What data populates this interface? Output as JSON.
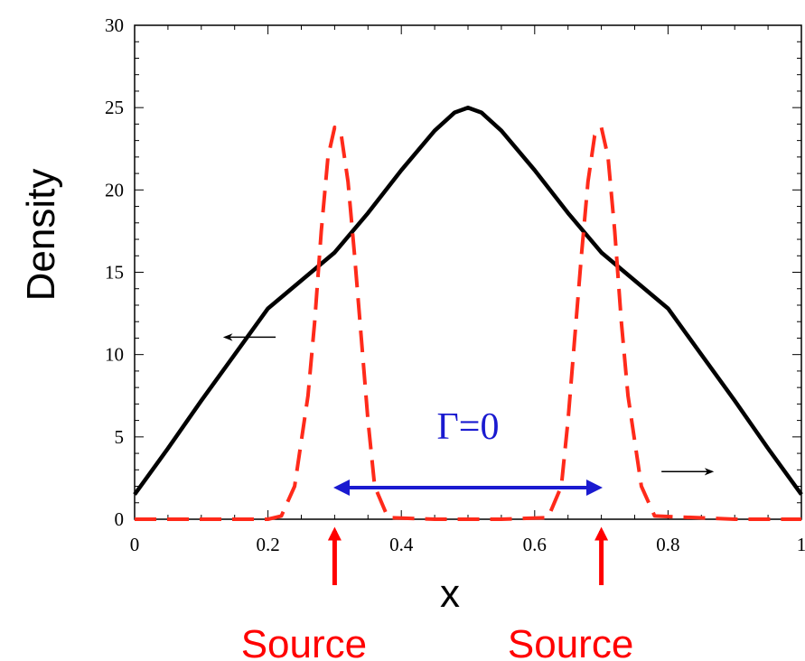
{
  "chart_data": {
    "type": "line",
    "xlabel": "x",
    "ylabel": "Density",
    "xlim": [
      0,
      1
    ],
    "ylim": [
      0,
      30
    ],
    "x_ticks": [
      "0",
      "0.2",
      "0.4",
      "0.6",
      "0.8",
      "1"
    ],
    "y_ticks": [
      "0",
      "5",
      "10",
      "15",
      "20",
      "25",
      "30"
    ],
    "grid": false,
    "series": [
      {
        "style": "solid",
        "color": "#000000",
        "x": [
          0,
          0.05,
          0.1,
          0.15,
          0.2,
          0.25,
          0.3,
          0.35,
          0.4,
          0.45,
          0.48,
          0.5,
          0.52,
          0.55,
          0.6,
          0.65,
          0.7,
          0.75,
          0.8,
          0.85,
          0.9,
          0.95,
          1
        ],
        "y": [
          1.5,
          4.3,
          7.2,
          10.0,
          12.8,
          14.5,
          16.2,
          18.6,
          21.2,
          23.6,
          24.7,
          25.0,
          24.7,
          23.6,
          21.2,
          18.6,
          16.2,
          14.5,
          12.8,
          10.0,
          7.2,
          4.3,
          1.5
        ]
      },
      {
        "style": "dashed",
        "color": "#ff2a1a",
        "x": [
          0,
          0.1,
          0.2,
          0.22,
          0.24,
          0.26,
          0.27,
          0.28,
          0.29,
          0.3,
          0.31,
          0.32,
          0.33,
          0.34,
          0.35,
          0.36,
          0.38,
          0.45,
          0.55,
          0.62,
          0.64,
          0.65,
          0.66,
          0.67,
          0.68,
          0.69,
          0.7,
          0.71,
          0.72,
          0.73,
          0.74,
          0.76,
          0.78,
          0.9,
          1
        ],
        "y": [
          0,
          0,
          0,
          0.2,
          2.0,
          7.5,
          12.0,
          17.5,
          22.0,
          23.8,
          23.3,
          20.5,
          16.0,
          11.0,
          6.0,
          2.0,
          0.1,
          0,
          0,
          0.1,
          2.0,
          6.0,
          11.0,
          16.0,
          20.5,
          23.3,
          23.8,
          22.0,
          17.5,
          12.0,
          7.5,
          2.0,
          0.2,
          0,
          0
        ]
      }
    ],
    "annotations": {
      "gamma_label": "Γ=0",
      "gamma_span": [
        0.3,
        0.7
      ],
      "source_label": "Source",
      "source_positions": [
        0.3,
        0.7
      ],
      "left_arrow_anchor": {
        "x": 0.16,
        "y": 11
      },
      "right_arrow_anchor": {
        "x": 0.82,
        "y": 3
      }
    },
    "colors": {
      "source_arrow": "#ff0000",
      "gamma": "#1a1ad0",
      "axes": "#000000"
    }
  }
}
